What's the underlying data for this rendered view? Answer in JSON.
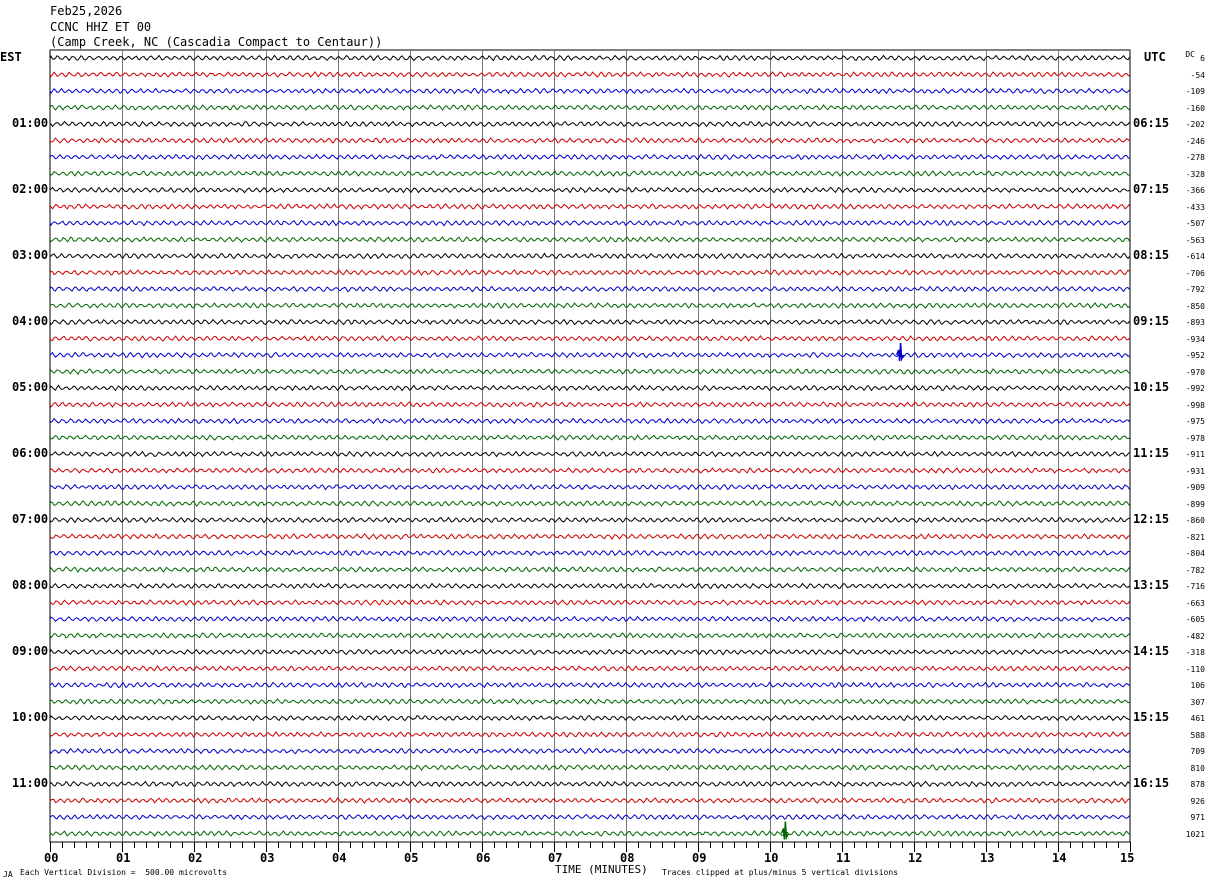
{
  "header": {
    "date": "Feb25,2026",
    "station": "CCNC HHZ ET 00",
    "location": "(Camp Creek, NC (Cascadia Compact to Centaur))"
  },
  "chart_data": {
    "type": "line",
    "title": "",
    "left_axis_label": "EST",
    "right_axis_label": "UTC",
    "dc_label": "DC",
    "xlabel": "TIME (MINUTES)",
    "x_ticks": [
      "00",
      "01",
      "02",
      "03",
      "04",
      "05",
      "06",
      "07",
      "08",
      "09",
      "10",
      "11",
      "12",
      "13",
      "14",
      "15"
    ],
    "xlim": [
      0,
      15
    ],
    "trace_colors": [
      "#000000",
      "#cc0000",
      "#0000cc",
      "#006600"
    ],
    "left_hour_labels": [
      "01:00",
      "02:00",
      "03:00",
      "04:00",
      "05:00",
      "06:00",
      "07:00",
      "08:00",
      "09:00",
      "10:00",
      "11:00"
    ],
    "right_hour_labels": [
      "06:15",
      "07:15",
      "08:15",
      "09:15",
      "10:15",
      "11:15",
      "12:15",
      "13:15",
      "14:15",
      "15:15",
      "16:15"
    ],
    "dc_offsets": [
      "6",
      "-54",
      "-109",
      "-160",
      "-202",
      "-246",
      "-278",
      "-328",
      "-366",
      "-433",
      "-507",
      "-563",
      "-614",
      "-706",
      "-792",
      "-850",
      "-893",
      "-934",
      "-952",
      "-970",
      "-992",
      "-998",
      "-975",
      "-978",
      "-911",
      "-931",
      "-909",
      "-899",
      "-860",
      "-821",
      "-804",
      "-782",
      "-716",
      "-663",
      "-605",
      "-482",
      "-318",
      "-110",
      "106",
      "307",
      "461",
      "588",
      "709",
      "810",
      "878",
      "926",
      "971",
      "1021"
    ],
    "events": [
      {
        "trace": 18,
        "minute": 11.8,
        "color": "#0000cc"
      },
      {
        "trace": 47,
        "minute": 10.2,
        "color": "#006600"
      }
    ]
  },
  "footer": {
    "scale": "Each Vertical Division =  500.00 microvolts",
    "clip": "Traces clipped at plus/minus 5 vertical divisions",
    "mark": "JA"
  }
}
